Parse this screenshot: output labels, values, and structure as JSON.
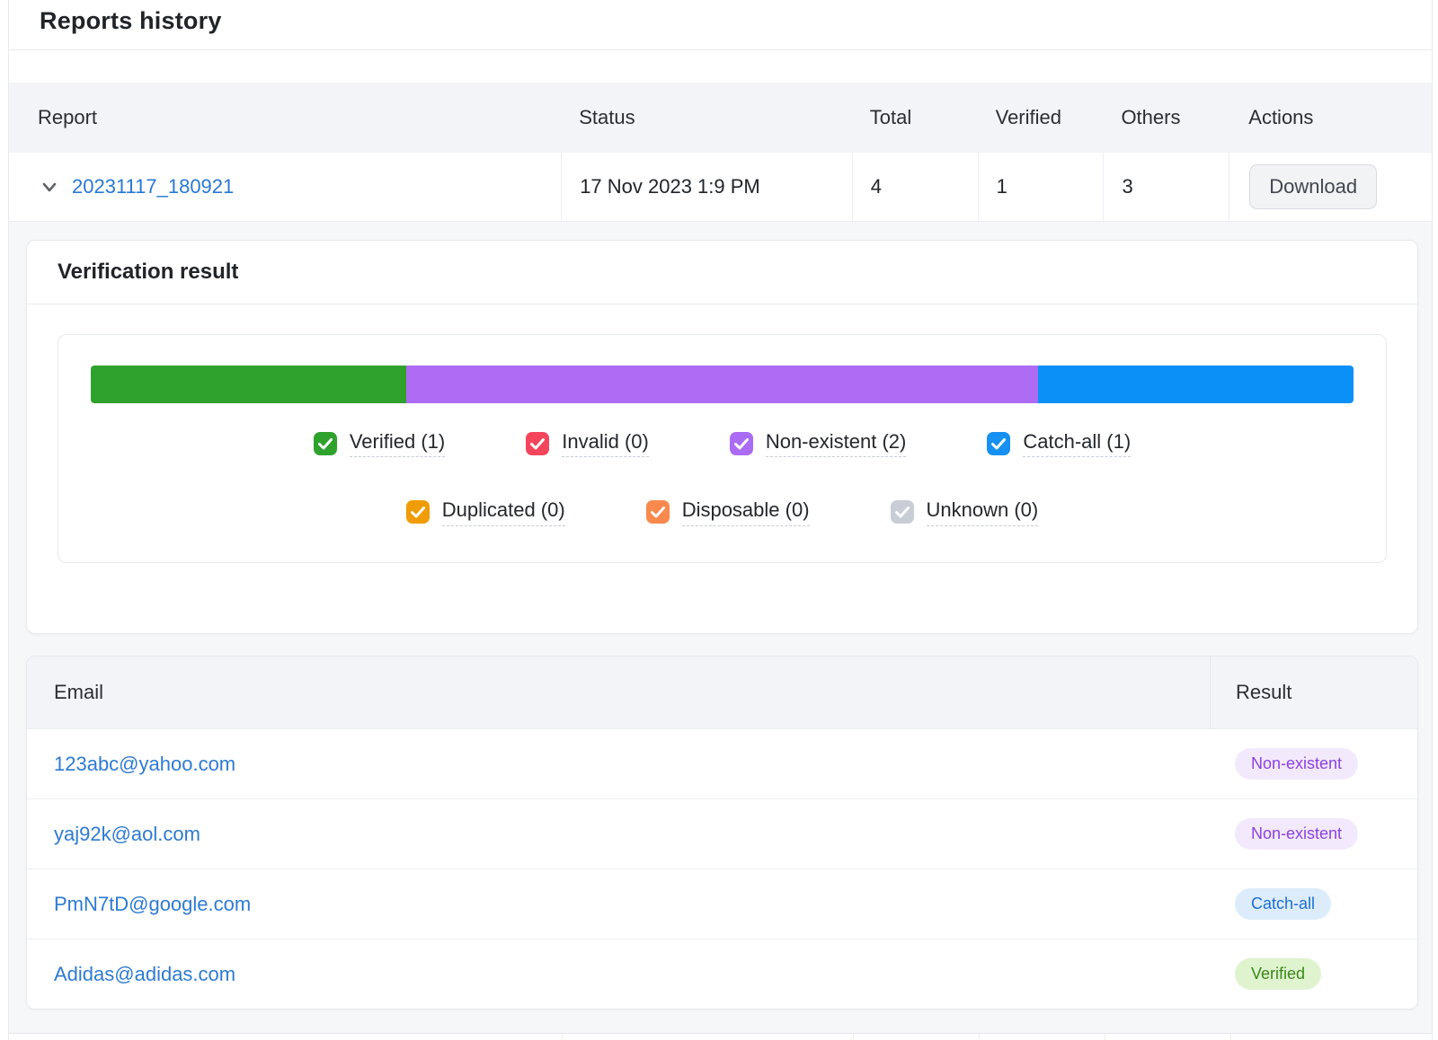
{
  "page": {
    "title": "Reports history"
  },
  "reports_table": {
    "columns": {
      "report": "Report",
      "status": "Status",
      "total": "Total",
      "verified": "Verified",
      "others": "Others",
      "actions": "Actions"
    },
    "row": {
      "report_name": "20231117_180921",
      "status": "17 Nov 2023 1:9 PM",
      "total": "4",
      "verified": "1",
      "others": "3",
      "action_label": "Download"
    }
  },
  "verification": {
    "title": "Verification result",
    "chart_data": {
      "type": "bar",
      "subtype": "stacked-horizontal-single",
      "total": 4,
      "series": [
        {
          "name": "Verified",
          "value": 1,
          "color": "#2fa12d"
        },
        {
          "name": "Non-existent",
          "value": 2,
          "color": "#ad6cf3"
        },
        {
          "name": "Catch-all",
          "value": 1,
          "color": "#0b90f7"
        }
      ],
      "title": "Verification result",
      "legend_position": "bottom-center",
      "axis": "none"
    },
    "legend": [
      {
        "key": "verified",
        "label": "Verified",
        "count": 1,
        "label_display": "Verified (1)",
        "checked": true,
        "color": "#2fa12d"
      },
      {
        "key": "invalid",
        "label": "Invalid",
        "count": 0,
        "label_display": "Invalid (0)",
        "checked": true,
        "color": "#f5455c"
      },
      {
        "key": "nonexistent",
        "label": "Non-existent",
        "count": 2,
        "label_display": "Non-existent (2)",
        "checked": true,
        "color": "#aa6bf5"
      },
      {
        "key": "catchall",
        "label": "Catch-all",
        "count": 1,
        "label_display": "Catch-all (1)",
        "checked": true,
        "color": "#1690f2"
      },
      {
        "key": "duplicated",
        "label": "Duplicated",
        "count": 0,
        "label_display": "Duplicated (0)",
        "checked": true,
        "color": "#f09c06"
      },
      {
        "key": "disposable",
        "label": "Disposable",
        "count": 0,
        "label_display": "Disposable (0)",
        "checked": true,
        "color": "#f9894d"
      },
      {
        "key": "unknown",
        "label": "Unknown",
        "count": 0,
        "label_display": "Unknown (0)",
        "checked": true,
        "color": "#c8cdd6"
      }
    ]
  },
  "email_table": {
    "columns": {
      "email": "Email",
      "result": "Result"
    },
    "rows": [
      {
        "email": "123abc@yahoo.com",
        "result": "Non-existent",
        "result_key": "nonexistent"
      },
      {
        "email": "yaj92k@aol.com",
        "result": "Non-existent",
        "result_key": "nonexistent"
      },
      {
        "email": "PmN7tD@google.com",
        "result": "Catch-all",
        "result_key": "catchall"
      },
      {
        "email": "Adidas@adidas.com",
        "result": "Verified",
        "result_key": "verified"
      }
    ]
  },
  "colors": {
    "link": "#2878d4",
    "header_bg": "#f3f4f7",
    "expanded_bg": "#f6f7f9",
    "badges": {
      "nonexistent": {
        "bg": "#f3e9fc",
        "text": "#8a42e0"
      },
      "catchall": {
        "bg": "#ddecfb",
        "text": "#1b6fd3"
      },
      "verified": {
        "bg": "#dff3cf",
        "text": "#3a8719"
      }
    }
  }
}
